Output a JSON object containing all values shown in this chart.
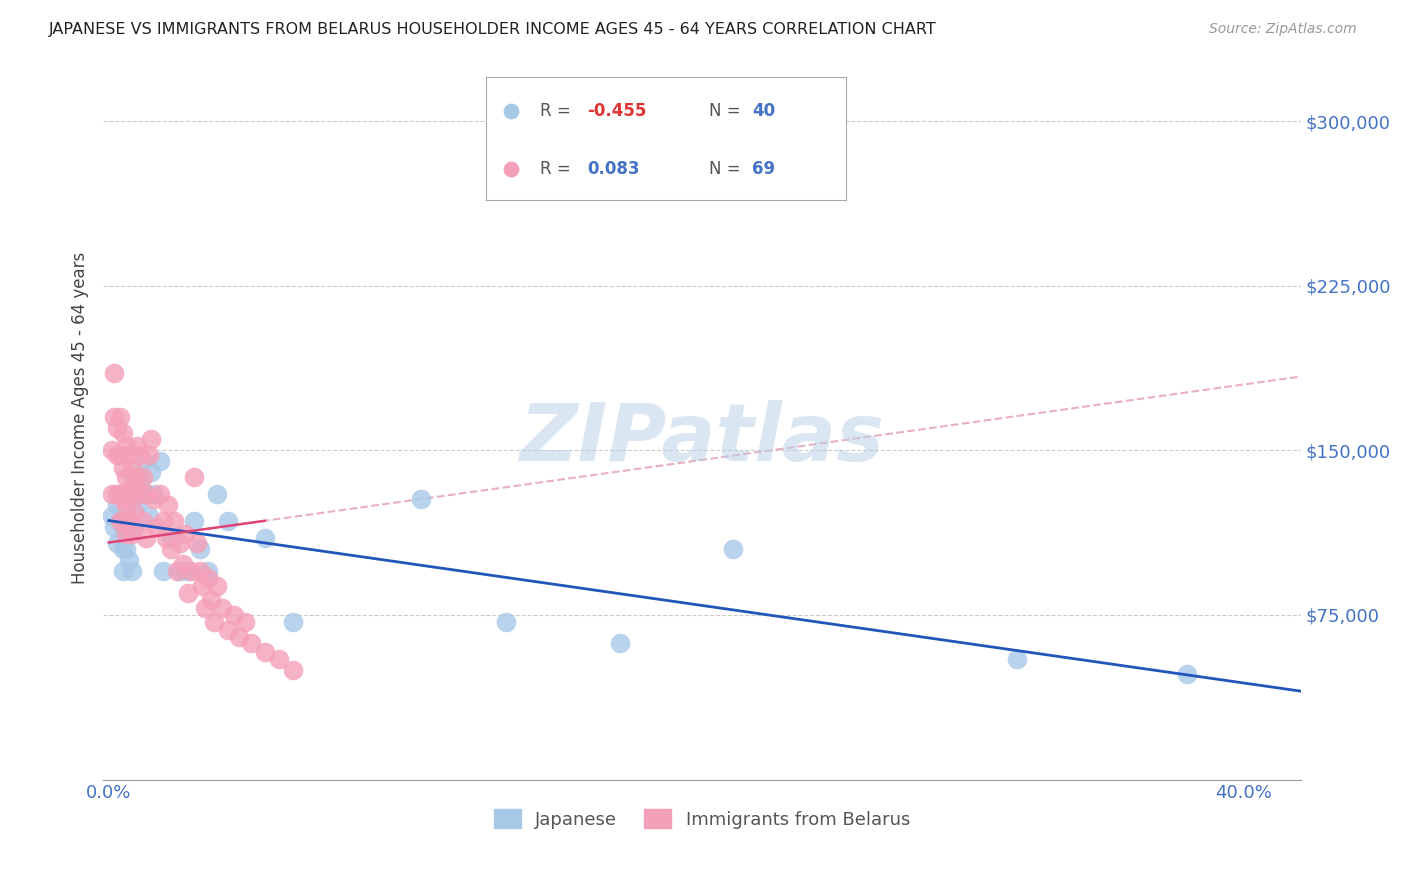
{
  "title": "JAPANESE VS IMMIGRANTS FROM BELARUS HOUSEHOLDER INCOME AGES 45 - 64 YEARS CORRELATION CHART",
  "source": "Source: ZipAtlas.com",
  "ylabel": "Householder Income Ages 45 - 64 years",
  "ytick_labels": [
    "$75,000",
    "$150,000",
    "$225,000",
    "$300,000"
  ],
  "ytick_values": [
    75000,
    150000,
    225000,
    300000
  ],
  "ymin": 0,
  "ymax": 330000,
  "xmin": -0.002,
  "xmax": 0.42,
  "watermark_text": "ZIPatlas",
  "legend_blue_r": "-0.455",
  "legend_blue_n": "40",
  "legend_pink_r": "0.083",
  "legend_pink_n": "69",
  "blue_color": "#a8c8e8",
  "pink_color": "#f4a0b8",
  "blue_line_color": "#2255bb",
  "pink_line_color": "#dd4477",
  "pink_dash_color": "#e8b0c0",
  "japanese_x": [
    0.001,
    0.002,
    0.003,
    0.003,
    0.004,
    0.005,
    0.005,
    0.005,
    0.006,
    0.006,
    0.007,
    0.007,
    0.008,
    0.008,
    0.009,
    0.01,
    0.011,
    0.012,
    0.013,
    0.014,
    0.015,
    0.016,
    0.018,
    0.019,
    0.022,
    0.025,
    0.028,
    0.03,
    0.032,
    0.035,
    0.038,
    0.042,
    0.055,
    0.065,
    0.11,
    0.14,
    0.18,
    0.22,
    0.32,
    0.38
  ],
  "japanese_y": [
    120000,
    115000,
    125000,
    108000,
    118000,
    115000,
    105000,
    95000,
    115000,
    105000,
    118000,
    100000,
    130000,
    95000,
    115000,
    125000,
    135000,
    145000,
    130000,
    120000,
    140000,
    130000,
    145000,
    95000,
    110000,
    95000,
    95000,
    118000,
    105000,
    95000,
    130000,
    118000,
    110000,
    72000,
    128000,
    72000,
    62000,
    105000,
    55000,
    48000
  ],
  "belarus_x": [
    0.001,
    0.001,
    0.002,
    0.002,
    0.003,
    0.003,
    0.003,
    0.004,
    0.004,
    0.004,
    0.004,
    0.005,
    0.005,
    0.005,
    0.005,
    0.006,
    0.006,
    0.006,
    0.006,
    0.007,
    0.007,
    0.007,
    0.008,
    0.008,
    0.008,
    0.009,
    0.009,
    0.01,
    0.01,
    0.011,
    0.011,
    0.012,
    0.012,
    0.013,
    0.013,
    0.014,
    0.015,
    0.016,
    0.017,
    0.018,
    0.019,
    0.02,
    0.021,
    0.022,
    0.023,
    0.024,
    0.025,
    0.026,
    0.027,
    0.028,
    0.029,
    0.03,
    0.031,
    0.032,
    0.033,
    0.034,
    0.035,
    0.036,
    0.037,
    0.038,
    0.04,
    0.042,
    0.044,
    0.046,
    0.048,
    0.05,
    0.055,
    0.06,
    0.065
  ],
  "belarus_y": [
    150000,
    130000,
    185000,
    165000,
    160000,
    148000,
    130000,
    165000,
    148000,
    130000,
    118000,
    158000,
    142000,
    128000,
    118000,
    152000,
    138000,
    125000,
    112000,
    148000,
    132000,
    118000,
    142000,
    130000,
    112000,
    138000,
    122000,
    152000,
    138000,
    148000,
    130000,
    138000,
    118000,
    130000,
    110000,
    148000,
    155000,
    128000,
    115000,
    130000,
    118000,
    110000,
    125000,
    105000,
    118000,
    95000,
    108000,
    98000,
    112000,
    85000,
    95000,
    138000,
    108000,
    95000,
    88000,
    78000,
    92000,
    82000,
    72000,
    88000,
    78000,
    68000,
    75000,
    65000,
    72000,
    62000,
    58000,
    55000,
    50000
  ]
}
